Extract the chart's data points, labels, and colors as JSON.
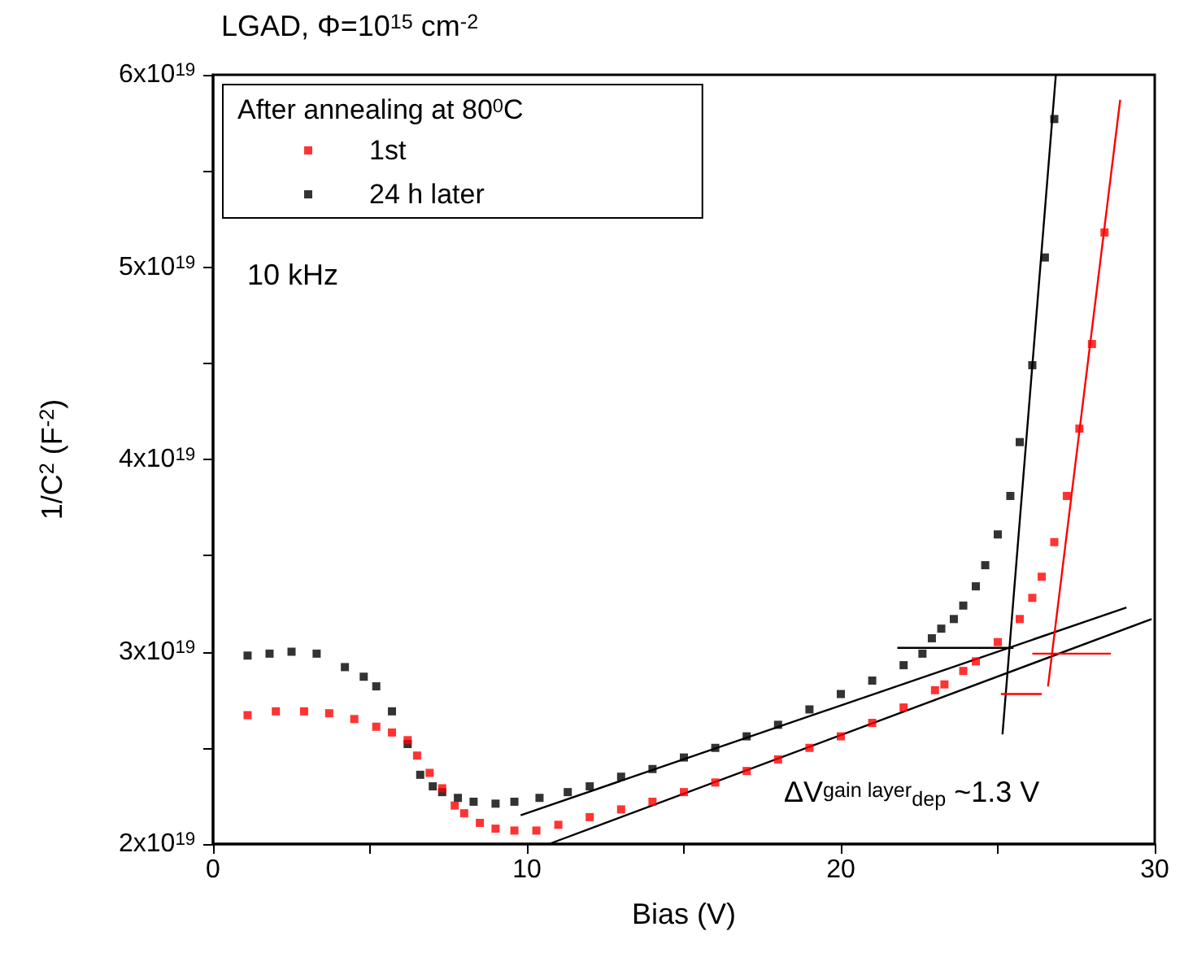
{
  "chart_data": {
    "type": "scatter",
    "title": "LGAD, Φ=10$^{15}$ cm$^{-2}$",
    "xlabel": "Bias (V)",
    "ylabel": "1/C$^{2}$ (F$^{-2}$)",
    "legend_title": "After annealing at 80$^{0}$C",
    "legend": "top left",
    "marker": "square",
    "grid": false,
    "annotations": [
      "10 kHz",
      "ΔV$^{gain layer}$$_{dep}$ ~1.3 V"
    ],
    "xlim": [
      0,
      30
    ],
    "xticks": [
      0,
      {
        "value": 5,
        "label": null
      },
      10,
      {
        "value": 15,
        "label": null
      },
      20,
      {
        "value": 25,
        "label": null
      },
      30
    ],
    "ylim": [
      2e+19,
      6e+19
    ],
    "yticks": [
      {
        "value": 2e+19,
        "label": "2x10$^{19}$"
      },
      {
        "value": 2.5e+19,
        "label": null
      },
      {
        "value": 3e+19,
        "label": "3x10$^{19}$"
      },
      {
        "value": 3.5e+19,
        "label": null
      },
      {
        "value": 4e+19,
        "label": "4x10$^{19}$"
      },
      {
        "value": 4.5e+19,
        "label": null
      },
      {
        "value": 5e+19,
        "label": "5x10$^{19}$"
      },
      {
        "value": 5.5e+19,
        "label": null
      },
      {
        "value": 6e+19,
        "label": "6x10$^{19}$"
      }
    ],
    "series": [
      {
        "name": "1st",
        "color": "#ff0000",
        "x": [
          1.1,
          2,
          2.9,
          3.7,
          4.5,
          5.2,
          5.7,
          6.2,
          6.5,
          6.9,
          7.3,
          7.7,
          8,
          8.5,
          9,
          9.6,
          10.3,
          11,
          12,
          13,
          14,
          15,
          16,
          17,
          18,
          19,
          20,
          21,
          22,
          23,
          23.3,
          23.9,
          24.3,
          25,
          25.7,
          26.1,
          26.4,
          26.8,
          27.2,
          27.6,
          28,
          28.4
        ],
        "values": [
          2.67e+19,
          2.69e+19,
          2.69e+19,
          2.68e+19,
          2.65e+19,
          2.61e+19,
          2.58e+19,
          2.54e+19,
          2.46e+19,
          2.37e+19,
          2.29e+19,
          2.2e+19,
          2.16e+19,
          2.11e+19,
          2.08e+19,
          2.07e+19,
          2.07e+19,
          2.1e+19,
          2.14e+19,
          2.18e+19,
          2.22e+19,
          2.27e+19,
          2.32e+19,
          2.38e+19,
          2.44e+19,
          2.5e+19,
          2.56e+19,
          2.63e+19,
          2.71e+19,
          2.8e+19,
          2.83e+19,
          2.9e+19,
          2.95e+19,
          3.05e+19,
          3.17e+19,
          3.28e+19,
          3.39e+19,
          3.57e+19,
          3.81e+19,
          4.16e+19,
          4.6e+19,
          5.18e+19
        ]
      },
      {
        "name": "24 h later",
        "color": "#000000",
        "x": [
          1.1,
          1.8,
          2.5,
          3.3,
          4.2,
          4.8,
          5.2,
          5.7,
          6.2,
          6.6,
          7,
          7.3,
          7.8,
          8.3,
          9,
          9.6,
          10.4,
          11.3,
          12,
          13,
          14,
          15,
          16,
          17,
          18,
          19,
          20,
          21,
          22,
          22.6,
          22.9,
          23.2,
          23.6,
          23.9,
          24.3,
          24.6,
          25,
          25.4,
          25.7,
          26.1,
          26.5,
          26.8
        ],
        "values": [
          2.98e+19,
          2.99e+19,
          3e+19,
          2.99e+19,
          2.92e+19,
          2.87e+19,
          2.82e+19,
          2.69e+19,
          2.52e+19,
          2.36e+19,
          2.3e+19,
          2.27e+19,
          2.24e+19,
          2.22e+19,
          2.21e+19,
          2.22e+19,
          2.24e+19,
          2.27e+19,
          2.3e+19,
          2.35e+19,
          2.39e+19,
          2.45e+19,
          2.5e+19,
          2.56e+19,
          2.62e+19,
          2.7e+19,
          2.78e+19,
          2.85e+19,
          2.93e+19,
          2.99e+19,
          3.07e+19,
          3.12e+19,
          3.17e+19,
          3.24e+19,
          3.34e+19,
          3.45e+19,
          3.61e+19,
          3.81e+19,
          4.09e+19,
          4.49e+19,
          5.05e+19,
          5.77e+19
        ]
      },
      {
        "type": "line",
        "marker": "none",
        "color": "#000000",
        "x": [
          9.8,
          29.1
        ],
        "values": [
          2.15e+19,
          3.23e+19
        ]
      },
      {
        "type": "line",
        "marker": "none",
        "color": "#000000",
        "x": [
          10.7,
          29.9
        ],
        "values": [
          2e+19,
          3.17e+19
        ]
      },
      {
        "type": "line",
        "marker": "none",
        "color": "#000000",
        "x": [
          25.15,
          26.85
        ],
        "values": [
          2.57e+19,
          6e+19
        ]
      },
      {
        "type": "line",
        "marker": "none",
        "color": "#ff0000",
        "x": [
          26.6,
          28.9
        ],
        "values": [
          2.82e+19,
          5.87e+19
        ]
      },
      {
        "type": "line",
        "marker": "none",
        "color": "#000000",
        "x": [
          21.8,
          25.5
        ],
        "values": [
          3.02e+19,
          3.02e+19
        ]
      },
      {
        "type": "line",
        "marker": "none",
        "color": "#ff0000",
        "x": [
          26.1,
          28.6
        ],
        "values": [
          2.99e+19,
          2.99e+19
        ]
      },
      {
        "type": "line",
        "marker": "none",
        "color": "#ff0000",
        "x": [
          26.4,
          25.1
        ],
        "values": [
          2.78e+19,
          2.78e+19
        ]
      }
    ]
  }
}
